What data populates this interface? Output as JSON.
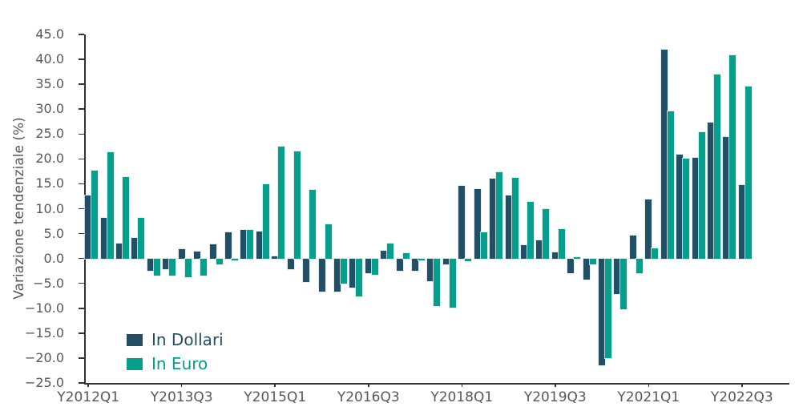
{
  "figure": {
    "y_axis": {
      "title": "Variazione tendenziale (%)",
      "min": -25.0,
      "max": 45.0,
      "step": 5.0,
      "tick_labels": [
        "45.0",
        "40.0",
        "35.0",
        "30.0",
        "25.0",
        "20.0",
        "15.0",
        "10.0",
        "5.0",
        "0.0",
        "−5.0",
        "−10.0",
        "−15.0",
        "−20.0",
        "−25.0"
      ]
    },
    "x_axis": {
      "tick_labels": [
        "Y2012Q1",
        "Y2013Q3",
        "Y2015Q1",
        "Y2016Q3",
        "Y2018Q1",
        "Y2019Q3",
        "Y2021Q1",
        "Y2022Q3"
      ]
    },
    "legend": [
      {
        "label": "In Dollari",
        "color": "#234f66"
      },
      {
        "label": "In Euro",
        "color": "#069e8d"
      }
    ]
  },
  "chart_data": {
    "type": "bar",
    "title": "",
    "xlabel": "",
    "ylabel": "Variazione tendenziale (%)",
    "ylim": [
      -25.0,
      45.0
    ],
    "grid": false,
    "legend_position": "lower left",
    "categories": [
      "Y2012Q1",
      "Y2012Q2",
      "Y2012Q3",
      "Y2012Q4",
      "Y2013Q1",
      "Y2013Q2",
      "Y2013Q3",
      "Y2013Q4",
      "Y2014Q1",
      "Y2014Q2",
      "Y2014Q3",
      "Y2014Q4",
      "Y2015Q1",
      "Y2015Q2",
      "Y2015Q3",
      "Y2015Q4",
      "Y2016Q1",
      "Y2016Q2",
      "Y2016Q3",
      "Y2016Q4",
      "Y2017Q1",
      "Y2017Q2",
      "Y2017Q3",
      "Y2017Q4",
      "Y2018Q1",
      "Y2018Q2",
      "Y2018Q3",
      "Y2018Q4",
      "Y2019Q1",
      "Y2019Q2",
      "Y2019Q3",
      "Y2019Q4",
      "Y2020Q1",
      "Y2020Q2",
      "Y2020Q3",
      "Y2020Q4",
      "Y2021Q1",
      "Y2021Q2",
      "Y2021Q3",
      "Y2021Q4",
      "Y2022Q1",
      "Y2022Q2",
      "Y2022Q3"
    ],
    "x_tick_labels_shown": [
      "Y2012Q1",
      "Y2013Q3",
      "Y2015Q1",
      "Y2016Q3",
      "Y2018Q1",
      "Y2019Q3",
      "Y2021Q1",
      "Y2022Q3"
    ],
    "series": [
      {
        "name": "In Dollari",
        "color": "#234f66",
        "values": [
          12.6,
          8.1,
          3.0,
          4.1,
          -2.4,
          -2.1,
          1.9,
          1.4,
          2.9,
          5.3,
          5.8,
          5.4,
          0.5,
          -2.2,
          -4.8,
          -6.6,
          -6.6,
          -5.9,
          -2.9,
          1.5,
          -2.4,
          -2.4,
          -4.5,
          -1.2,
          14.6,
          14.0,
          16.0,
          12.7,
          2.7,
          3.7,
          1.2,
          -2.9,
          -4.2,
          -21.5,
          -7.2,
          4.6,
          11.8,
          41.9,
          20.9,
          20.2,
          27.3,
          24.4,
          14.8
        ]
      },
      {
        "name": "In Euro",
        "color": "#069e8d",
        "values": [
          17.6,
          21.3,
          16.3,
          8.2,
          -3.4,
          -3.4,
          -3.8,
          -3.4,
          -1.2,
          -0.3,
          5.8,
          14.9,
          22.4,
          21.5,
          13.8,
          6.8,
          -5.1,
          -7.7,
          -3.3,
          3.0,
          1.0,
          -0.3,
          -9.5,
          -9.9,
          -0.6,
          5.2,
          17.3,
          16.2,
          11.3,
          9.9,
          5.9,
          0.3,
          -1.2,
          -20.0,
          -10.2,
          -2.9,
          2.1,
          29.6,
          20.1,
          25.3,
          36.9,
          40.8,
          34.6
        ]
      }
    ]
  }
}
